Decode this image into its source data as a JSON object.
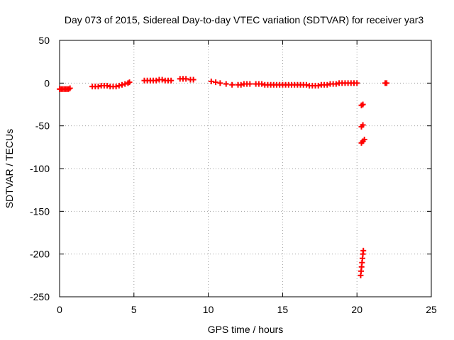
{
  "chart_data": {
    "type": "scatter",
    "title": "Day 073 of 2015, Sidereal Day-to-day VTEC variation (SDTVAR) for receiver yar3",
    "xlabel": "GPS time / hours",
    "ylabel": "SDTVAR / TECUs",
    "xlim": [
      0,
      25
    ],
    "ylim": [
      -250,
      50
    ],
    "xticks": [
      0,
      5,
      10,
      15,
      20,
      25
    ],
    "yticks": [
      50,
      0,
      -50,
      -100,
      -150,
      -200,
      -250
    ],
    "grid": true,
    "legend": "none",
    "marker": "plus",
    "series": [
      {
        "color": "#ff0000",
        "points": [
          [
            0.0,
            -7
          ],
          [
            0.1,
            -7
          ],
          [
            0.2,
            -7
          ],
          [
            0.3,
            -7
          ],
          [
            0.4,
            -7
          ],
          [
            0.5,
            -7
          ],
          [
            0.6,
            -7
          ],
          [
            0.7,
            -6
          ],
          [
            2.2,
            -4
          ],
          [
            2.4,
            -4
          ],
          [
            2.6,
            -4
          ],
          [
            2.8,
            -3
          ],
          [
            3.0,
            -3
          ],
          [
            3.2,
            -3
          ],
          [
            3.4,
            -4
          ],
          [
            3.6,
            -4
          ],
          [
            3.8,
            -4
          ],
          [
            4.0,
            -3
          ],
          [
            4.2,
            -2
          ],
          [
            4.4,
            -1
          ],
          [
            4.6,
            0
          ],
          [
            4.7,
            1
          ],
          [
            5.7,
            3
          ],
          [
            5.9,
            3
          ],
          [
            6.1,
            3
          ],
          [
            6.3,
            3
          ],
          [
            6.5,
            3
          ],
          [
            6.7,
            4
          ],
          [
            6.9,
            4
          ],
          [
            7.1,
            3
          ],
          [
            7.3,
            3
          ],
          [
            7.5,
            3
          ],
          [
            8.1,
            5
          ],
          [
            8.3,
            5
          ],
          [
            8.5,
            5
          ],
          [
            8.8,
            4
          ],
          [
            9.0,
            4
          ],
          [
            10.2,
            2
          ],
          [
            10.5,
            1
          ],
          [
            10.8,
            0
          ],
          [
            11.2,
            -1
          ],
          [
            11.6,
            -2
          ],
          [
            12.0,
            -2
          ],
          [
            12.2,
            -2
          ],
          [
            12.4,
            -1
          ],
          [
            12.6,
            -1
          ],
          [
            12.8,
            -1
          ],
          [
            13.2,
            -1
          ],
          [
            13.4,
            -1
          ],
          [
            13.6,
            -1
          ],
          [
            13.8,
            -2
          ],
          [
            14.0,
            -2
          ],
          [
            14.2,
            -2
          ],
          [
            14.4,
            -2
          ],
          [
            14.6,
            -2
          ],
          [
            14.8,
            -2
          ],
          [
            15.0,
            -2
          ],
          [
            15.2,
            -2
          ],
          [
            15.4,
            -2
          ],
          [
            15.6,
            -2
          ],
          [
            15.8,
            -2
          ],
          [
            16.0,
            -2
          ],
          [
            16.2,
            -2
          ],
          [
            16.4,
            -2
          ],
          [
            16.6,
            -2
          ],
          [
            16.8,
            -3
          ],
          [
            17.0,
            -3
          ],
          [
            17.2,
            -3
          ],
          [
            17.4,
            -3
          ],
          [
            17.6,
            -2
          ],
          [
            17.8,
            -2
          ],
          [
            18.0,
            -2
          ],
          [
            18.2,
            -1
          ],
          [
            18.4,
            -1
          ],
          [
            18.6,
            -1
          ],
          [
            18.8,
            0
          ],
          [
            19.0,
            0
          ],
          [
            19.2,
            0
          ],
          [
            19.4,
            0
          ],
          [
            19.6,
            0
          ],
          [
            19.8,
            0
          ],
          [
            20.0,
            0
          ],
          [
            20.3,
            -26
          ],
          [
            20.4,
            -25
          ],
          [
            20.3,
            -51
          ],
          [
            20.4,
            -49
          ],
          [
            20.3,
            -70
          ],
          [
            20.4,
            -68
          ],
          [
            20.5,
            -66
          ],
          [
            20.25,
            -225
          ],
          [
            20.28,
            -220
          ],
          [
            20.31,
            -215
          ],
          [
            20.34,
            -210
          ],
          [
            20.37,
            -205
          ],
          [
            20.4,
            -200
          ],
          [
            20.43,
            -196
          ],
          [
            21.9,
            0
          ],
          [
            22.0,
            0
          ]
        ]
      }
    ]
  }
}
